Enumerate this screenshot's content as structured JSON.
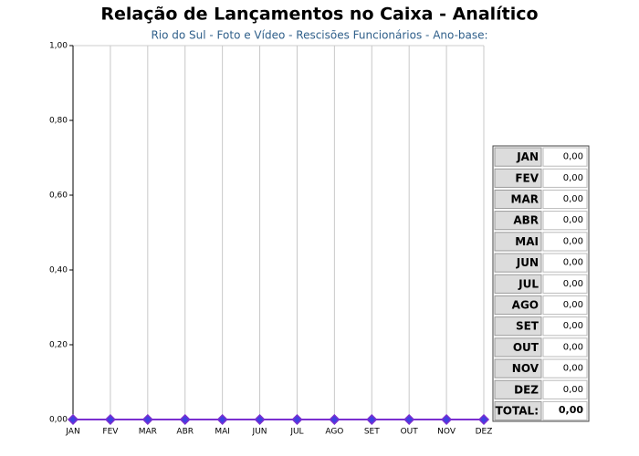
{
  "chart_data": {
    "type": "line",
    "title": "Relação de Lançamentos no Caixa - Analítico",
    "subtitle": "Rio do Sul - Foto e Vídeo - Rescisões Funcionários - Ano-base:",
    "categories": [
      "JAN",
      "FEV",
      "MAR",
      "ABR",
      "MAI",
      "JUN",
      "JUL",
      "AGO",
      "SET",
      "OUT",
      "NOV",
      "DEZ"
    ],
    "series": [
      {
        "color": "#7b2fd0",
        "values": [
          0,
          0,
          0,
          0,
          0,
          0,
          0,
          0,
          0,
          0,
          0,
          0
        ]
      }
    ],
    "ylim": [
      0,
      1
    ],
    "yticks": [
      {
        "value": 0,
        "label": "0,00"
      },
      {
        "value": 0.2,
        "label": "0,20"
      },
      {
        "value": 0.4,
        "label": "0,40"
      },
      {
        "value": 0.6,
        "label": "0,60"
      },
      {
        "value": 0.8,
        "label": "0,80"
      },
      {
        "value": 1,
        "label": "1,00"
      }
    ],
    "grid": true
  },
  "table": {
    "rows": [
      [
        "JAN",
        "0,00"
      ],
      [
        "FEV",
        "0,00"
      ],
      [
        "MAR",
        "0,00"
      ],
      [
        "ABR",
        "0,00"
      ],
      [
        "MAI",
        "0,00"
      ],
      [
        "JUN",
        "0,00"
      ],
      [
        "JUL",
        "0,00"
      ],
      [
        "AGO",
        "0,00"
      ],
      [
        "SET",
        "0,00"
      ],
      [
        "OUT",
        "0,00"
      ],
      [
        "NOV",
        "0,00"
      ],
      [
        "DEZ",
        "0,00"
      ]
    ],
    "total": [
      "TOTAL:",
      "0,00"
    ]
  }
}
